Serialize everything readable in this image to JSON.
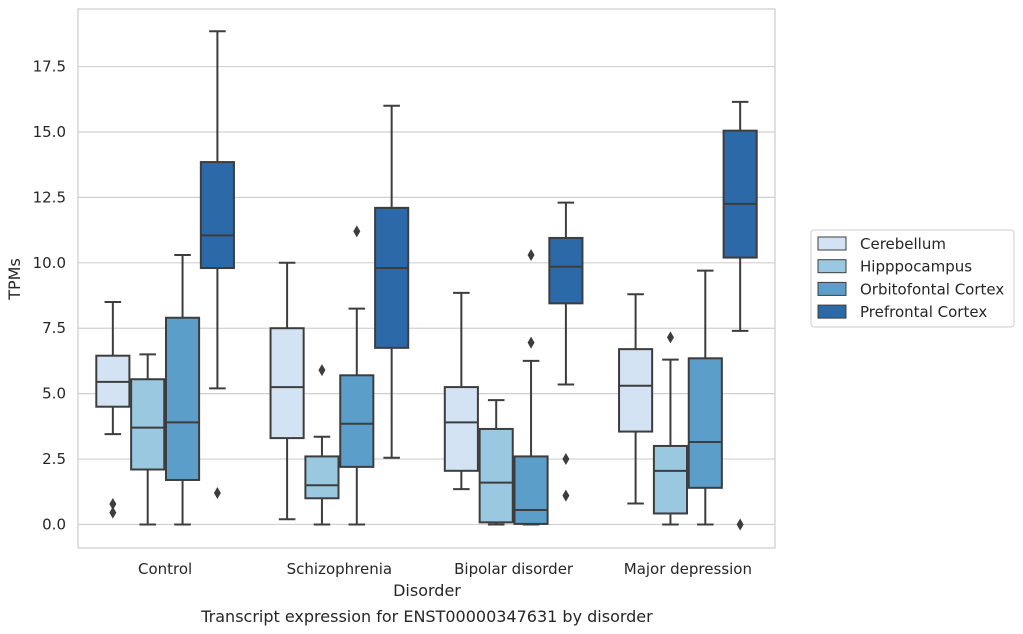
{
  "chart_data": {
    "type": "boxplot",
    "title": "",
    "caption": "Transcript expression for ENST00000347631 by disorder",
    "xlabel": "Disorder",
    "ylabel": "TPMs",
    "ylim": [
      -0.9,
      19.7
    ],
    "yticks": [
      "0.0",
      "2.5",
      "5.0",
      "7.5",
      "10.0",
      "12.5",
      "15.0",
      "17.5"
    ],
    "grid": "horizontal",
    "legend_position": "right",
    "categories": [
      "Control",
      "Schizophrenia",
      "Bipolar disorder",
      "Major depression"
    ],
    "series": [
      {
        "name": "Cerebellum",
        "color": "#d3e3f3",
        "boxes": [
          {
            "whisker_low": 3.45,
            "q1": 4.5,
            "median": 5.45,
            "q3": 6.45,
            "whisker_high": 8.5,
            "outliers": [
              0.45,
              0.78
            ]
          },
          {
            "whisker_low": 0.2,
            "q1": 3.3,
            "median": 5.25,
            "q3": 7.5,
            "whisker_high": 10.0,
            "outliers": []
          },
          {
            "whisker_low": 1.35,
            "q1": 2.05,
            "median": 3.9,
            "q3": 5.25,
            "whisker_high": 8.85,
            "outliers": []
          },
          {
            "whisker_low": 0.8,
            "q1": 3.55,
            "median": 5.3,
            "q3": 6.7,
            "whisker_high": 8.8,
            "outliers": []
          }
        ]
      },
      {
        "name": "Hipppocampus",
        "color": "#9ac8e0",
        "boxes": [
          {
            "whisker_low": 0.0,
            "q1": 2.1,
            "median": 3.7,
            "q3": 5.55,
            "whisker_high": 6.5,
            "outliers": []
          },
          {
            "whisker_low": 0.0,
            "q1": 1.0,
            "median": 1.5,
            "q3": 2.6,
            "whisker_high": 3.35,
            "outliers": [
              5.9
            ]
          },
          {
            "whisker_low": 0.0,
            "q1": 0.08,
            "median": 1.6,
            "q3": 3.65,
            "whisker_high": 4.75,
            "outliers": []
          },
          {
            "whisker_low": 0.0,
            "q1": 0.42,
            "median": 2.05,
            "q3": 3.0,
            "whisker_high": 6.3,
            "outliers": [
              7.15
            ]
          }
        ]
      },
      {
        "name": "Orbitofontal Cortex",
        "color": "#5a9ec9",
        "boxes": [
          {
            "whisker_low": 0.0,
            "q1": 1.7,
            "median": 3.9,
            "q3": 7.9,
            "whisker_high": 10.3,
            "outliers": []
          },
          {
            "whisker_low": 0.0,
            "q1": 2.2,
            "median": 3.85,
            "q3": 5.7,
            "whisker_high": 8.25,
            "outliers": [
              11.2
            ]
          },
          {
            "whisker_low": 0.0,
            "q1": 0.02,
            "median": 0.55,
            "q3": 2.6,
            "whisker_high": 6.25,
            "outliers": [
              6.95,
              10.3
            ]
          },
          {
            "whisker_low": 0.0,
            "q1": 1.4,
            "median": 3.15,
            "q3": 6.35,
            "whisker_high": 9.7,
            "outliers": []
          }
        ]
      },
      {
        "name": "Prefrontal Cortex",
        "color": "#2c69a8",
        "boxes": [
          {
            "whisker_low": 5.2,
            "q1": 9.8,
            "median": 11.05,
            "q3": 13.85,
            "whisker_high": 18.85,
            "outliers": [
              1.2
            ]
          },
          {
            "whisker_low": 2.55,
            "q1": 6.75,
            "median": 9.8,
            "q3": 12.1,
            "whisker_high": 16.0,
            "outliers": []
          },
          {
            "whisker_low": 5.35,
            "q1": 8.45,
            "median": 9.85,
            "q3": 10.95,
            "whisker_high": 12.3,
            "outliers": [
              1.1,
              2.5
            ]
          },
          {
            "whisker_low": 7.4,
            "q1": 10.2,
            "median": 12.25,
            "q3": 15.05,
            "whisker_high": 16.15,
            "outliers": [
              0.0
            ]
          }
        ]
      }
    ]
  }
}
